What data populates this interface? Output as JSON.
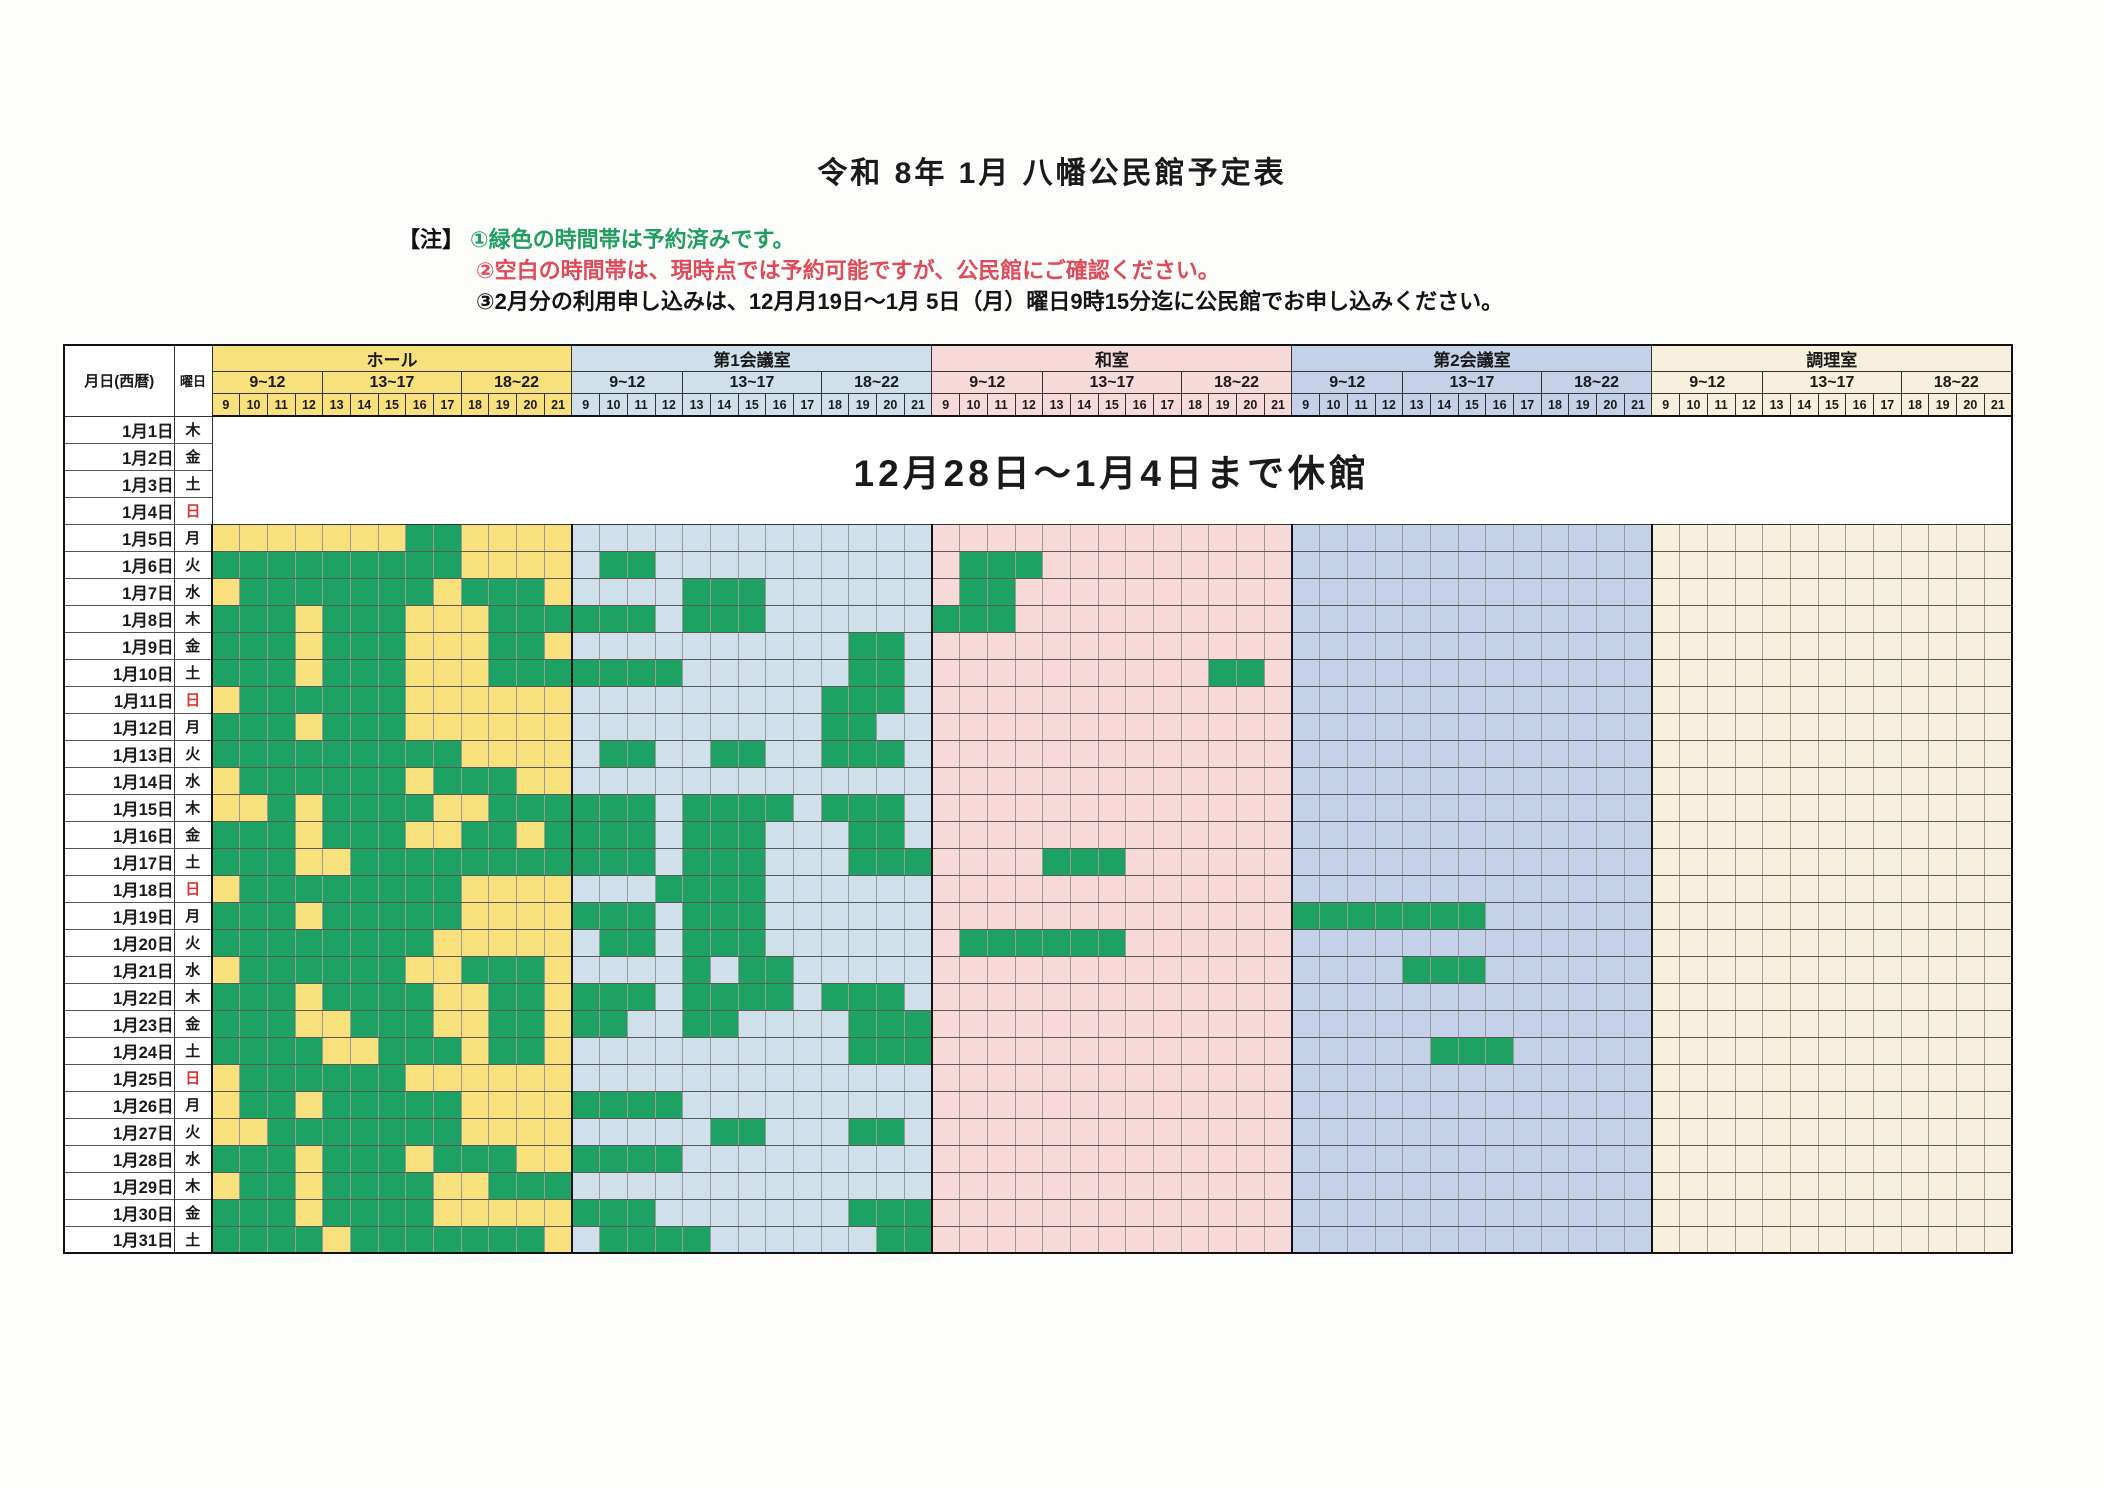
{
  "title": "令和 8年 1月 八幡公民館予定表",
  "notes": {
    "label": "【注】",
    "items": [
      {
        "text": "①緑色の時間帯は予約済みです。",
        "color": "green",
        "indent": false
      },
      {
        "text": "②空白の時間帯は、現時点では予約可能ですが、公民館にご確認ください。",
        "color": "red",
        "indent": true
      },
      {
        "text": "③2月分の利用申し込みは、12月月19日～1月 5日（月）曜日9時15分迄に公民館でお申し込みください。",
        "color": "black",
        "indent": true
      }
    ]
  },
  "colors": {
    "reserved_green": "#1ea263",
    "sunday_red": "#dd3333",
    "hall_yellow": "#f8e07d",
    "room1_blue": "#cfe0eb",
    "washitsu_pink": "#f8d9da",
    "room2_lavender": "#c5d0e9",
    "kitchen_cream": "#f6f0dd"
  },
  "table": {
    "date_header": "月日(西暦)",
    "dow_header": "曜日",
    "bands": [
      {
        "label": "9~12",
        "hours": [
          "9",
          "10",
          "11",
          "12"
        ]
      },
      {
        "label": "13~17",
        "hours": [
          "13",
          "14",
          "15",
          "16",
          "17"
        ]
      },
      {
        "label": "18~22",
        "hours": [
          "18",
          "19",
          "20",
          "21"
        ]
      }
    ],
    "rooms": [
      {
        "id": "hall",
        "name": "ホール",
        "color": "#f8e07d"
      },
      {
        "id": "room1",
        "name": "第1会議室",
        "color": "#cfe0eb"
      },
      {
        "id": "washitsu",
        "name": "和室",
        "color": "#f8d9da"
      },
      {
        "id": "room2",
        "name": "第2会議室",
        "color": "#c5d0e9"
      },
      {
        "id": "kitchen",
        "name": "調理室",
        "color": "#f6f0dd"
      }
    ],
    "closed_notice": {
      "text": "12月28日～1月4日まで休館",
      "row_count": 4
    },
    "days": [
      {
        "date": "1月1日",
        "dow": "木",
        "red": false
      },
      {
        "date": "1月2日",
        "dow": "金",
        "red": false
      },
      {
        "date": "1月3日",
        "dow": "土",
        "red": false
      },
      {
        "date": "1月4日",
        "dow": "日",
        "red": true
      },
      {
        "date": "1月5日",
        "dow": "月",
        "red": false
      },
      {
        "date": "1月6日",
        "dow": "火",
        "red": false
      },
      {
        "date": "1月7日",
        "dow": "水",
        "red": false
      },
      {
        "date": "1月8日",
        "dow": "木",
        "red": false
      },
      {
        "date": "1月9日",
        "dow": "金",
        "red": false
      },
      {
        "date": "1月10日",
        "dow": "土",
        "red": false
      },
      {
        "date": "1月11日",
        "dow": "日",
        "red": true
      },
      {
        "date": "1月12日",
        "dow": "月",
        "red": false
      },
      {
        "date": "1月13日",
        "dow": "火",
        "red": false
      },
      {
        "date": "1月14日",
        "dow": "水",
        "red": false
      },
      {
        "date": "1月15日",
        "dow": "木",
        "red": false
      },
      {
        "date": "1月16日",
        "dow": "金",
        "red": false
      },
      {
        "date": "1月17日",
        "dow": "土",
        "red": false
      },
      {
        "date": "1月18日",
        "dow": "日",
        "red": true
      },
      {
        "date": "1月19日",
        "dow": "月",
        "red": false
      },
      {
        "date": "1月20日",
        "dow": "火",
        "red": false
      },
      {
        "date": "1月21日",
        "dow": "水",
        "red": false
      },
      {
        "date": "1月22日",
        "dow": "木",
        "red": false
      },
      {
        "date": "1月23日",
        "dow": "金",
        "red": false
      },
      {
        "date": "1月24日",
        "dow": "土",
        "red": false
      },
      {
        "date": "1月25日",
        "dow": "日",
        "red": true
      },
      {
        "date": "1月26日",
        "dow": "月",
        "red": false
      },
      {
        "date": "1月27日",
        "dow": "火",
        "red": false
      },
      {
        "date": "1月28日",
        "dow": "水",
        "red": false
      },
      {
        "date": "1月29日",
        "dow": "木",
        "red": false
      },
      {
        "date": "1月30日",
        "dow": "金",
        "red": false
      },
      {
        "date": "1月31日",
        "dow": "土",
        "red": false
      }
    ],
    "reservations": {
      "hall": {
        "5": [
          16,
          17
        ],
        "6": [
          9,
          10,
          11,
          12,
          13,
          14,
          15,
          16,
          17
        ],
        "7": [
          10,
          11,
          12,
          13,
          14,
          15,
          16,
          18,
          19,
          20
        ],
        "8": [
          9,
          10,
          11,
          13,
          14,
          15,
          19,
          20,
          21
        ],
        "9": [
          9,
          10,
          11,
          13,
          14,
          15,
          19,
          20
        ],
        "10": [
          9,
          10,
          11,
          13,
          14,
          15,
          19,
          20,
          21
        ],
        "11": [
          10,
          11,
          12,
          13,
          14,
          15
        ],
        "12": [
          9,
          10,
          11,
          13,
          14,
          15
        ],
        "13": [
          9,
          10,
          11,
          12,
          13,
          14,
          15,
          16,
          17
        ],
        "14": [
          10,
          11,
          12,
          13,
          14,
          15,
          17,
          18,
          19
        ],
        "15": [
          11,
          13,
          14,
          15,
          16,
          19,
          20,
          21
        ],
        "16": [
          9,
          10,
          11,
          13,
          14,
          15,
          18,
          19,
          21
        ],
        "17": [
          9,
          10,
          11,
          14,
          15,
          16,
          17,
          18,
          19,
          20,
          21
        ],
        "18": [
          10,
          11,
          12,
          13,
          14,
          15,
          16,
          17
        ],
        "19": [
          9,
          10,
          11,
          13,
          14,
          15,
          16,
          17
        ],
        "20": [
          9,
          10,
          11,
          12,
          13,
          14,
          15,
          16
        ],
        "21": [
          10,
          11,
          12,
          13,
          14,
          15,
          18,
          19,
          20
        ],
        "22": [
          9,
          10,
          11,
          13,
          14,
          15,
          16,
          19,
          20
        ],
        "23": [
          9,
          10,
          11,
          14,
          15,
          16,
          19,
          20
        ],
        "24": [
          9,
          10,
          11,
          12,
          15,
          16,
          17,
          19,
          20
        ],
        "25": [
          10,
          11,
          12,
          13,
          14,
          15
        ],
        "26": [
          10,
          11,
          13,
          14,
          15,
          16,
          17
        ],
        "27": [
          11,
          12,
          13,
          14,
          15,
          16,
          17
        ],
        "28": [
          9,
          10,
          11,
          13,
          14,
          15,
          17,
          18,
          19
        ],
        "29": [
          10,
          11,
          13,
          14,
          15,
          16,
          19,
          20,
          21
        ],
        "30": [
          9,
          10,
          11,
          13,
          14,
          15,
          16
        ],
        "31": [
          9,
          10,
          11,
          12,
          14,
          15,
          16,
          17,
          18,
          19,
          20
        ]
      },
      "room1": {
        "6": [
          10,
          11
        ],
        "7": [
          13,
          14,
          15
        ],
        "8": [
          9,
          10,
          11,
          13,
          14,
          15
        ],
        "9": [
          19,
          20
        ],
        "10": [
          9,
          10,
          11,
          12,
          19,
          20
        ],
        "11": [
          18,
          19,
          20
        ],
        "12": [
          18,
          19
        ],
        "13": [
          10,
          11,
          14,
          15,
          18,
          19,
          20
        ],
        "15": [
          9,
          10,
          11,
          13,
          14,
          15,
          16,
          18,
          19,
          20
        ],
        "16": [
          9,
          10,
          11,
          13,
          14,
          15,
          19,
          20
        ],
        "17": [
          9,
          10,
          11,
          13,
          14,
          15,
          19,
          20,
          21
        ],
        "18": [
          12,
          13,
          14,
          15
        ],
        "19": [
          9,
          10,
          11,
          13,
          14,
          15
        ],
        "20": [
          10,
          11,
          13,
          14,
          15
        ],
        "21": [
          13,
          15,
          16
        ],
        "22": [
          9,
          10,
          11,
          13,
          14,
          15,
          16,
          18,
          19,
          20
        ],
        "23": [
          9,
          10,
          13,
          14,
          19,
          20,
          21
        ],
        "24": [
          19,
          20,
          21
        ],
        "26": [
          9,
          10,
          11,
          12
        ],
        "27": [
          14,
          15,
          19,
          20
        ],
        "28": [
          9,
          10,
          11,
          12
        ],
        "30": [
          9,
          10,
          11,
          19,
          20,
          21
        ],
        "31": [
          10,
          11,
          12,
          13,
          20,
          21
        ]
      },
      "washitsu": {
        "6": [
          10,
          11,
          12
        ],
        "7": [
          10,
          11
        ],
        "8": [
          9,
          10,
          11
        ],
        "10": [
          19,
          20
        ],
        "17": [
          13,
          14,
          15
        ],
        "20": [
          10,
          11,
          12,
          13,
          14,
          15
        ]
      },
      "room2": {
        "19": [
          9,
          10,
          11,
          12,
          13,
          14,
          15
        ],
        "21": [
          13,
          14,
          15
        ],
        "24": [
          14,
          15,
          16
        ]
      },
      "kitchen": {}
    }
  }
}
